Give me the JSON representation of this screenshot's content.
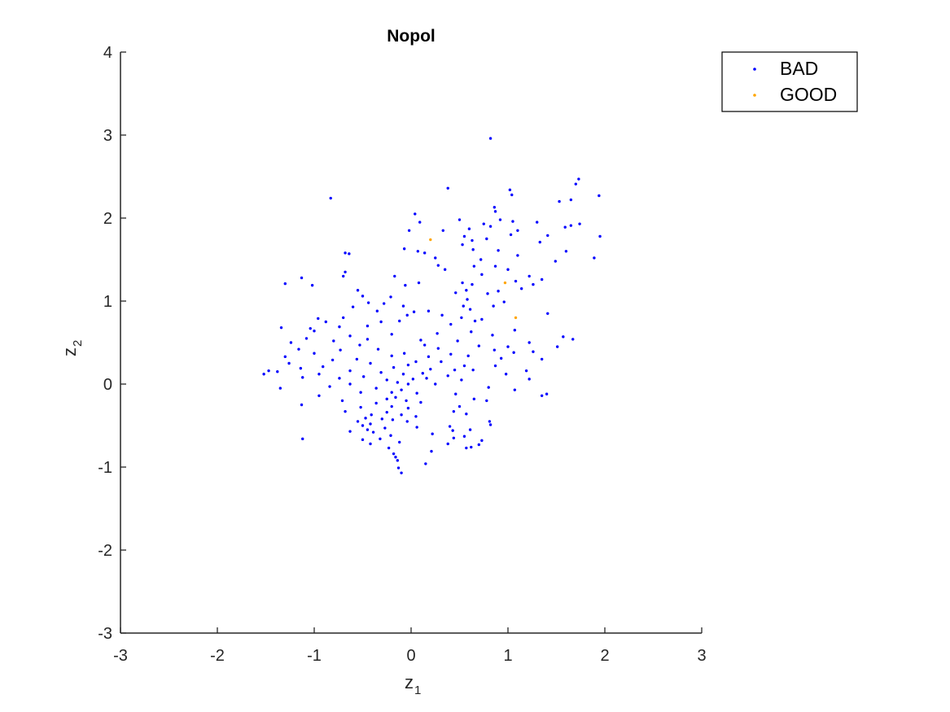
{
  "chart_data": {
    "type": "scatter",
    "title": "Nopol",
    "xlabel": {
      "main": "z",
      "sub": "1"
    },
    "ylabel": {
      "main": "z",
      "sub": "2"
    },
    "xlim": [
      -3,
      3
    ],
    "ylim": [
      -3,
      4
    ],
    "xticks": [
      -3,
      -2,
      -1,
      0,
      1,
      2,
      3
    ],
    "yticks": [
      -3,
      -2,
      -1,
      0,
      1,
      2,
      3,
      4
    ],
    "grid": false,
    "legend_position": "top-right",
    "series": [
      {
        "name": "BAD",
        "color": "#0000ff",
        "points": [
          [
            0.82,
            2.96
          ],
          [
            -0.83,
            2.24
          ],
          [
            0.38,
            2.36
          ],
          [
            1.73,
            2.47
          ],
          [
            1.7,
            2.41
          ],
          [
            1.94,
            2.27
          ],
          [
            1.02,
            2.34
          ],
          [
            1.04,
            2.28
          ],
          [
            0.04,
            2.05
          ],
          [
            1.65,
            2.22
          ],
          [
            1.53,
            2.2
          ],
          [
            0.86,
            2.13
          ],
          [
            0.87,
            2.08
          ],
          [
            0.09,
            1.95
          ],
          [
            0.5,
            1.98
          ],
          [
            0.92,
            1.98
          ],
          [
            1.05,
            1.96
          ],
          [
            1.3,
            1.95
          ],
          [
            1.74,
            1.93
          ],
          [
            1.59,
            1.89
          ],
          [
            1.65,
            1.91
          ],
          [
            0.82,
            1.9
          ],
          [
            0.75,
            1.93
          ],
          [
            0.6,
            1.87
          ],
          [
            1.1,
            1.85
          ],
          [
            -0.02,
            1.85
          ],
          [
            0.33,
            1.85
          ],
          [
            0.55,
            1.78
          ],
          [
            0.63,
            1.73
          ],
          [
            0.78,
            1.75
          ],
          [
            1.95,
            1.78
          ],
          [
            1.41,
            1.79
          ],
          [
            1.03,
            1.8
          ],
          [
            1.33,
            1.71
          ],
          [
            0.53,
            1.68
          ],
          [
            -0.07,
            1.63
          ],
          [
            0.07,
            1.6
          ],
          [
            0.64,
            1.62
          ],
          [
            0.9,
            1.61
          ],
          [
            1.6,
            1.6
          ],
          [
            1.89,
            1.52
          ],
          [
            -0.68,
            1.58
          ],
          [
            -0.64,
            1.57
          ],
          [
            0.14,
            1.58
          ],
          [
            0.25,
            1.52
          ],
          [
            0.72,
            1.5
          ],
          [
            1.1,
            1.55
          ],
          [
            1.49,
            1.48
          ],
          [
            0.65,
            1.42
          ],
          [
            0.28,
            1.43
          ],
          [
            0.87,
            1.42
          ],
          [
            0.35,
            1.38
          ],
          [
            1.0,
            1.38
          ],
          [
            -0.68,
            1.35
          ],
          [
            -0.7,
            1.3
          ],
          [
            -0.17,
            1.3
          ],
          [
            0.73,
            1.32
          ],
          [
            -1.13,
            1.28
          ],
          [
            1.22,
            1.3
          ],
          [
            1.35,
            1.26
          ],
          [
            1.08,
            1.24
          ],
          [
            -1.3,
            1.21
          ],
          [
            -1.02,
            1.19
          ],
          [
            -0.06,
            1.19
          ],
          [
            0.08,
            1.22
          ],
          [
            0.53,
            1.22
          ],
          [
            0.63,
            1.2
          ],
          [
            1.26,
            1.2
          ],
          [
            1.14,
            1.15
          ],
          [
            0.9,
            1.12
          ],
          [
            -0.55,
            1.13
          ],
          [
            0.57,
            1.13
          ],
          [
            0.46,
            1.1
          ],
          [
            -0.5,
            1.06
          ],
          [
            -0.21,
            1.05
          ],
          [
            0.79,
            1.09
          ],
          [
            0.58,
            1.02
          ],
          [
            -0.28,
            0.97
          ],
          [
            0.96,
            0.99
          ],
          [
            -0.44,
            0.98
          ],
          [
            -0.08,
            0.94
          ],
          [
            0.85,
            0.94
          ],
          [
            0.54,
            0.94
          ],
          [
            -0.6,
            0.93
          ],
          [
            0.61,
            0.9
          ],
          [
            -0.35,
            0.88
          ],
          [
            0.03,
            0.87
          ],
          [
            0.18,
            0.88
          ],
          [
            1.41,
            0.85
          ],
          [
            -0.04,
            0.83
          ],
          [
            0.52,
            0.8
          ],
          [
            0.32,
            0.83
          ],
          [
            -0.7,
            0.8
          ],
          [
            -0.96,
            0.79
          ],
          [
            0.73,
            0.78
          ],
          [
            -0.31,
            0.75
          ],
          [
            -0.88,
            0.75
          ],
          [
            -0.12,
            0.76
          ],
          [
            0.66,
            0.76
          ],
          [
            0.41,
            0.72
          ],
          [
            -0.45,
            0.7
          ],
          [
            -1.04,
            0.67
          ],
          [
            -0.74,
            0.69
          ],
          [
            -1.34,
            0.68
          ],
          [
            1.07,
            0.65
          ],
          [
            0.62,
            0.63
          ],
          [
            -1.0,
            0.64
          ],
          [
            -0.2,
            0.6
          ],
          [
            0.27,
            0.61
          ],
          [
            0.84,
            0.59
          ],
          [
            -0.63,
            0.58
          ],
          [
            -1.08,
            0.55
          ],
          [
            1.57,
            0.57
          ],
          [
            1.67,
            0.54
          ],
          [
            -0.45,
            0.54
          ],
          [
            0.1,
            0.53
          ],
          [
            -0.8,
            0.52
          ],
          [
            0.48,
            0.52
          ],
          [
            1.22,
            0.5
          ],
          [
            -1.24,
            0.5
          ],
          [
            -0.53,
            0.47
          ],
          [
            0.14,
            0.47
          ],
          [
            0.7,
            0.46
          ],
          [
            1.51,
            0.45
          ],
          [
            0.28,
            0.43
          ],
          [
            1.0,
            0.45
          ],
          [
            -0.34,
            0.42
          ],
          [
            -0.73,
            0.41
          ],
          [
            -1.16,
            0.42
          ],
          [
            0.86,
            0.41
          ],
          [
            1.26,
            0.39
          ],
          [
            -0.07,
            0.37
          ],
          [
            0.41,
            0.36
          ],
          [
            1.06,
            0.38
          ],
          [
            -1.0,
            0.37
          ],
          [
            -0.2,
            0.34
          ],
          [
            0.18,
            0.33
          ],
          [
            -1.3,
            0.33
          ],
          [
            0.59,
            0.34
          ],
          [
            0.93,
            0.31
          ],
          [
            -0.56,
            0.3
          ],
          [
            1.35,
            0.3
          ],
          [
            -0.81,
            0.29
          ],
          [
            0.05,
            0.27
          ],
          [
            0.31,
            0.27
          ],
          [
            -1.26,
            0.25
          ],
          [
            -0.42,
            0.25
          ],
          [
            -0.03,
            0.23
          ],
          [
            0.55,
            0.22
          ],
          [
            0.87,
            0.22
          ],
          [
            -0.91,
            0.21
          ],
          [
            -0.18,
            0.2
          ],
          [
            0.2,
            0.18
          ],
          [
            -1.14,
            0.19
          ],
          [
            0.45,
            0.17
          ],
          [
            -0.63,
            0.16
          ],
          [
            0.64,
            0.17
          ],
          [
            1.19,
            0.16
          ],
          [
            -1.47,
            0.16
          ],
          [
            -1.38,
            0.15
          ],
          [
            -0.31,
            0.14
          ],
          [
            -0.08,
            0.12
          ],
          [
            0.12,
            0.13
          ],
          [
            -1.52,
            0.12
          ],
          [
            -0.95,
            0.12
          ],
          [
            0.38,
            0.1
          ],
          [
            -0.49,
            0.09
          ],
          [
            0.98,
            0.12
          ],
          [
            0.16,
            0.07
          ],
          [
            -0.74,
            0.07
          ],
          [
            -1.12,
            0.08
          ],
          [
            0.02,
            0.06
          ],
          [
            -0.25,
            0.05
          ],
          [
            0.52,
            0.05
          ],
          [
            1.22,
            0.06
          ],
          [
            -0.14,
            0.02
          ],
          [
            -0.03,
            0.0
          ],
          [
            -0.63,
            0.0
          ],
          [
            0.25,
            0.0
          ],
          [
            -1.35,
            -0.05
          ],
          [
            -0.84,
            -0.03
          ],
          [
            0.8,
            -0.04
          ],
          [
            -0.36,
            -0.05
          ],
          [
            -0.1,
            -0.07
          ],
          [
            1.07,
            -0.07
          ],
          [
            -0.52,
            -0.1
          ],
          [
            -0.2,
            -0.1
          ],
          [
            0.06,
            -0.11
          ],
          [
            0.46,
            -0.12
          ],
          [
            -0.95,
            -0.14
          ],
          [
            1.4,
            -0.12
          ],
          [
            1.35,
            -0.14
          ],
          [
            -0.16,
            -0.16
          ],
          [
            -0.25,
            -0.18
          ],
          [
            -0.05,
            -0.2
          ],
          [
            -0.71,
            -0.2
          ],
          [
            0.65,
            -0.18
          ],
          [
            0.78,
            -0.2
          ],
          [
            -0.36,
            -0.23
          ],
          [
            0.1,
            -0.22
          ],
          [
            -1.13,
            -0.25
          ],
          [
            -0.2,
            -0.27
          ],
          [
            -0.52,
            -0.28
          ],
          [
            -0.03,
            -0.29
          ],
          [
            0.5,
            -0.27
          ],
          [
            0.44,
            -0.33
          ],
          [
            -0.68,
            -0.33
          ],
          [
            -0.25,
            -0.34
          ],
          [
            -0.41,
            -0.37
          ],
          [
            0.57,
            -0.36
          ],
          [
            -0.1,
            -0.37
          ],
          [
            0.05,
            -0.39
          ],
          [
            -0.47,
            -0.41
          ],
          [
            -0.3,
            -0.42
          ],
          [
            -0.19,
            -0.43
          ],
          [
            -0.55,
            -0.45
          ],
          [
            0.81,
            -0.45
          ],
          [
            -0.04,
            -0.45
          ],
          [
            0.82,
            -0.49
          ],
          [
            -0.42,
            -0.48
          ],
          [
            -0.5,
            -0.5
          ],
          [
            0.4,
            -0.51
          ],
          [
            0.06,
            -0.52
          ],
          [
            -0.27,
            -0.53
          ],
          [
            -0.45,
            -0.55
          ],
          [
            0.43,
            -0.56
          ],
          [
            0.61,
            -0.55
          ],
          [
            -0.63,
            -0.57
          ],
          [
            -0.39,
            -0.58
          ],
          [
            0.22,
            -0.6
          ],
          [
            -0.21,
            -0.62
          ],
          [
            0.55,
            -0.63
          ],
          [
            0.44,
            -0.65
          ],
          [
            -1.12,
            -0.66
          ],
          [
            -0.5,
            -0.67
          ],
          [
            -0.32,
            -0.66
          ],
          [
            0.73,
            -0.68
          ],
          [
            -0.12,
            -0.7
          ],
          [
            0.38,
            -0.72
          ],
          [
            -0.42,
            -0.72
          ],
          [
            0.7,
            -0.73
          ],
          [
            0.62,
            -0.76
          ],
          [
            0.57,
            -0.77
          ],
          [
            -0.23,
            -0.77
          ],
          [
            0.21,
            -0.81
          ],
          [
            -0.18,
            -0.84
          ],
          [
            -0.16,
            -0.88
          ],
          [
            -0.14,
            -0.92
          ],
          [
            0.15,
            -0.96
          ],
          [
            -0.13,
            -1.01
          ],
          [
            -0.1,
            -1.07
          ]
        ]
      },
      {
        "name": "GOOD",
        "color": "#ffa500",
        "points": [
          [
            0.2,
            1.74
          ],
          [
            0.97,
            1.22
          ],
          [
            1.08,
            0.8
          ]
        ]
      }
    ]
  }
}
